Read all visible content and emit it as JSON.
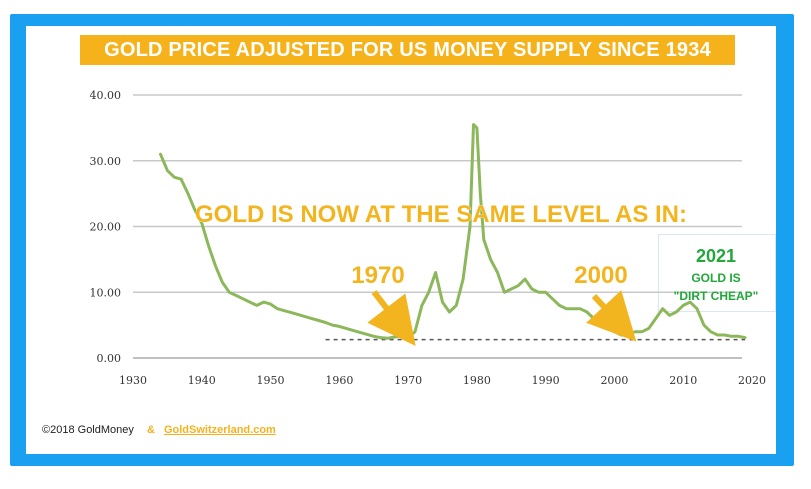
{
  "title": "GOLD PRICE ADJUSTED FOR US MONEY SUPPLY SINCE 1934",
  "headline": "GOLD IS NOW AT THE SAME LEVEL AS IN:",
  "annotations": {
    "y1970": "1970",
    "y2000": "2000",
    "y2021": "2021",
    "gold_is": "GOLD IS",
    "dirt_cheap": "\"DIRT CHEAP\""
  },
  "footer": {
    "copyright": "©2018 GoldMoney",
    "ampersand": "&",
    "link": "GoldSwitzerland.com"
  },
  "colors": {
    "frame": "#1aa0f0",
    "title_bg": "#f6b21b",
    "line": "#8cb85b",
    "arrow": "#f2b51f",
    "green_text": "#21a73a",
    "reference_line": "#555555"
  },
  "chart_data": {
    "type": "line",
    "title": "GOLD PRICE ADJUSTED FOR US MONEY SUPPLY SINCE 1934",
    "xlabel": "",
    "ylabel": "",
    "xlim": [
      1930,
      2020
    ],
    "ylim": [
      0,
      40
    ],
    "grid": true,
    "x_ticks": [
      1930,
      1940,
      1950,
      1960,
      1970,
      1980,
      1990,
      2000,
      2010,
      2020
    ],
    "y_ticks": [
      0,
      10,
      20,
      30,
      40
    ],
    "y_tick_labels": [
      "0.00",
      "10.00",
      "20.00",
      "30.00",
      "40.00"
    ],
    "x_tick_labels": [
      "1930",
      "1940",
      "1950",
      "1960",
      "1970",
      "1980",
      "1990",
      "2000",
      "2010",
      "2020"
    ],
    "reference_level": 2.8,
    "reference_range": [
      1958,
      2019
    ],
    "series": [
      {
        "x": [
          1934,
          1935,
          1936,
          1937,
          1938,
          1939,
          1940,
          1941,
          1942,
          1943,
          1944,
          1945,
          1946,
          1947,
          1948,
          1949,
          1950,
          1951,
          1952,
          1953,
          1954,
          1955,
          1956,
          1957,
          1958,
          1959,
          1960,
          1961,
          1962,
          1963,
          1964,
          1965,
          1966,
          1967,
          1968,
          1969,
          1970,
          1971,
          1972,
          1973,
          1974,
          1975,
          1976,
          1977,
          1978,
          1979,
          1979.5,
          1980,
          1980.5,
          1981,
          1982,
          1983,
          1984,
          1985,
          1986,
          1987,
          1988,
          1989,
          1990,
          1991,
          1992,
          1993,
          1994,
          1995,
          1996,
          1997,
          1998,
          1999,
          2000,
          2001,
          2002,
          2003,
          2004,
          2005,
          2006,
          2007,
          2008,
          2009,
          2010,
          2011,
          2012,
          2013,
          2014,
          2015,
          2016,
          2017,
          2018,
          2019
        ],
        "values": [
          31.0,
          28.5,
          27.5,
          27.2,
          25.0,
          22.5,
          20.5,
          17.0,
          14.0,
          11.5,
          10.0,
          9.5,
          9.0,
          8.5,
          8.0,
          8.5,
          8.2,
          7.5,
          7.2,
          6.9,
          6.6,
          6.3,
          6.0,
          5.7,
          5.4,
          5.0,
          4.8,
          4.5,
          4.2,
          3.9,
          3.6,
          3.3,
          3.1,
          3.0,
          3.2,
          3.3,
          3.0,
          4.0,
          8.0,
          10.0,
          13.0,
          8.5,
          7.0,
          8.0,
          12.0,
          20.0,
          35.5,
          35.0,
          25.0,
          18.0,
          15.0,
          13.0,
          10.0,
          10.5,
          11.0,
          12.0,
          10.5,
          10.0,
          10.0,
          9.0,
          8.0,
          7.5,
          7.5,
          7.5,
          7.0,
          6.0,
          5.0,
          4.5,
          4.0,
          3.5,
          3.5,
          4.0,
          4.0,
          4.5,
          6.0,
          7.5,
          6.5,
          7.0,
          8.0,
          8.5,
          7.5,
          5.0,
          4.0,
          3.5,
          3.5,
          3.3,
          3.3,
          3.1
        ]
      }
    ]
  }
}
